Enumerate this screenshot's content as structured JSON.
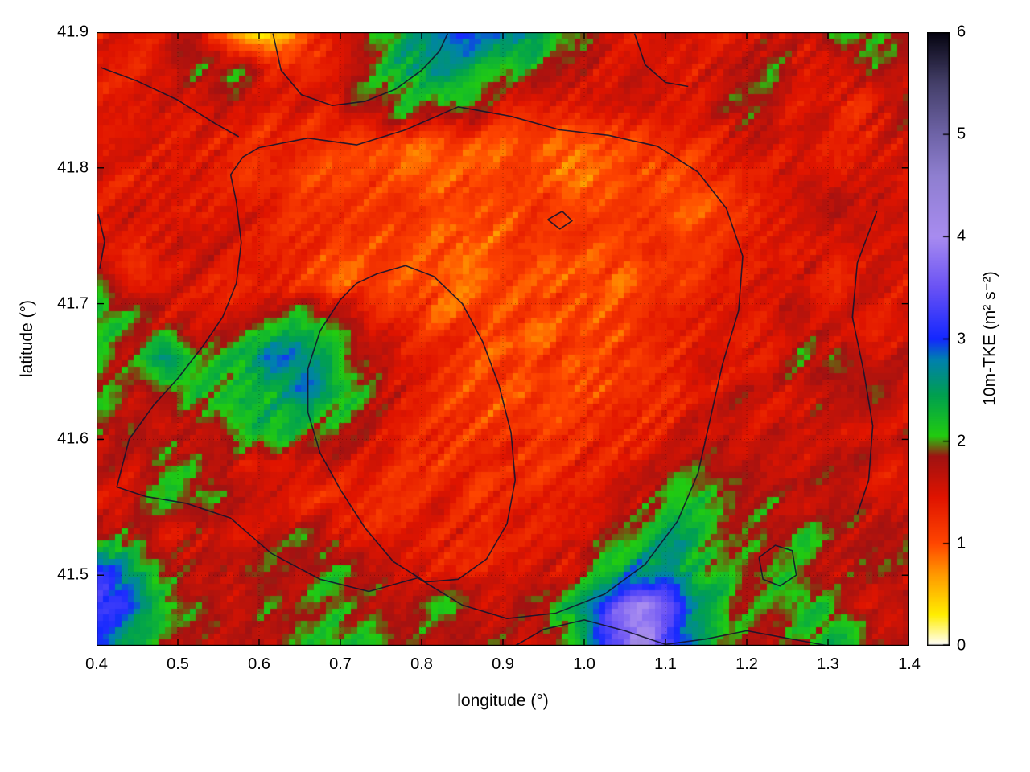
{
  "figure": {
    "background": "#ffffff",
    "plot_border_color": "#000000"
  },
  "chart_data": {
    "type": "heatmap",
    "title": "",
    "xlabel": "longitude (°)",
    "ylabel": "latitude (°)",
    "colorbar_label": "10m-TKE (m² s⁻²)",
    "xlim": [
      0.4,
      1.4
    ],
    "ylim": [
      41.448,
      41.9
    ],
    "clim": [
      0,
      6
    ],
    "grid_on": true,
    "legend_position": "colorbar-right",
    "x_ticks": {
      "values": [
        0.4,
        0.5,
        0.6,
        0.7,
        0.8,
        0.9,
        1.0,
        1.1,
        1.2,
        1.3,
        1.4
      ],
      "labels": [
        "0.4",
        "0.5",
        "0.6",
        "0.7",
        "0.8",
        "0.9",
        "1.0",
        "1.1",
        "1.2",
        "1.3",
        "1.4"
      ]
    },
    "y_ticks": {
      "values": [
        41.5,
        41.6,
        41.7,
        41.8,
        41.9
      ],
      "labels": [
        "41.5",
        "41.6",
        "41.7",
        "41.8",
        "41.9"
      ]
    },
    "colorbar_ticks": {
      "values": [
        0,
        1,
        2,
        3,
        4,
        5,
        6
      ],
      "labels": [
        "0",
        "1",
        "2",
        "3",
        "4",
        "5",
        "6"
      ]
    },
    "colormap": [
      [
        0.0,
        "#ffffff"
      ],
      [
        0.3,
        "#ffee00"
      ],
      [
        0.7,
        "#ff9800"
      ],
      [
        1.0,
        "#ff4600"
      ],
      [
        1.45,
        "#e01400"
      ],
      [
        1.85,
        "#a01212"
      ],
      [
        2.05,
        "#22cc10"
      ],
      [
        2.45,
        "#00a050"
      ],
      [
        2.8,
        "#0080b0"
      ],
      [
        3.0,
        "#1428ff"
      ],
      [
        3.5,
        "#6a52f5"
      ],
      [
        4.0,
        "#a88cf0"
      ],
      [
        4.6,
        "#8f7fd0"
      ],
      [
        5.0,
        "#6f64a8"
      ],
      [
        5.5,
        "#45406a"
      ],
      [
        6.0,
        "#060410"
      ]
    ],
    "grid": {
      "cols": 25,
      "rows": 18,
      "lon_start": 0.42,
      "lon_step": 0.04,
      "lat_start_top": 41.8875,
      "lat_step": -0.025,
      "values": [
        [
          1.5,
          1.4,
          1.6,
          1.5,
          0.8,
          0.3,
          1.0,
          1.5,
          1.9,
          2.3,
          2.9,
          3.0,
          2.6,
          2.5,
          2.0,
          1.5,
          1.4,
          1.6,
          1.5,
          1.4,
          1.6,
          1.5,
          1.9,
          2.1,
          1.8
        ],
        [
          1.4,
          1.5,
          1.4,
          1.9,
          2.0,
          1.4,
          1.3,
          1.5,
          1.7,
          2.4,
          2.6,
          2.3,
          2.0,
          2.1,
          1.7,
          1.5,
          1.6,
          1.4,
          1.5,
          1.7,
          2.0,
          1.5,
          1.4,
          1.7,
          1.6
        ],
        [
          1.5,
          1.4,
          1.5,
          1.6,
          1.5,
          1.4,
          1.5,
          1.4,
          1.9,
          2.1,
          1.7,
          2.0,
          1.5,
          1.5,
          1.4,
          1.6,
          1.5,
          1.4,
          1.5,
          1.9,
          1.8,
          1.5,
          1.4,
          1.5,
          1.7
        ],
        [
          1.4,
          1.5,
          1.5,
          1.4,
          1.3,
          1.2,
          1.1,
          1.2,
          1.1,
          1.0,
          1.1,
          1.0,
          1.0,
          1.1,
          1.0,
          1.1,
          1.1,
          1.2,
          1.3,
          1.4,
          1.5,
          1.4,
          1.5,
          1.4,
          1.6
        ],
        [
          1.5,
          1.4,
          1.6,
          1.5,
          1.4,
          1.2,
          1.1,
          1.0,
          1.1,
          1.0,
          0.9,
          1.0,
          1.0,
          1.0,
          0.9,
          1.0,
          1.1,
          1.0,
          1.2,
          1.4,
          1.5,
          1.6,
          1.4,
          1.5,
          1.4
        ],
        [
          1.4,
          1.6,
          1.5,
          1.4,
          1.5,
          1.3,
          1.2,
          1.1,
          1.0,
          1.1,
          1.0,
          1.0,
          1.0,
          1.1,
          1.0,
          1.1,
          1.1,
          1.1,
          1.0,
          1.2,
          1.5,
          1.4,
          1.6,
          1.5,
          1.7
        ],
        [
          1.5,
          1.4,
          1.5,
          1.6,
          1.4,
          1.3,
          1.2,
          1.1,
          1.1,
          1.0,
          1.1,
          1.0,
          1.0,
          1.0,
          1.1,
          1.1,
          1.1,
          1.0,
          1.1,
          1.3,
          1.5,
          1.6,
          1.4,
          1.5,
          1.6
        ],
        [
          2.0,
          1.6,
          1.4,
          1.5,
          1.4,
          1.3,
          1.2,
          1.1,
          1.0,
          1.1,
          1.0,
          0.9,
          1.0,
          1.1,
          1.0,
          1.1,
          1.0,
          1.1,
          1.2,
          1.4,
          1.6,
          1.5,
          1.4,
          1.6,
          1.5
        ],
        [
          2.2,
          2.0,
          1.6,
          1.5,
          1.8,
          2.0,
          2.2,
          1.9,
          1.5,
          1.2,
          1.1,
          1.0,
          1.0,
          1.0,
          1.1,
          1.0,
          1.1,
          1.2,
          1.3,
          1.5,
          1.4,
          1.6,
          1.5,
          1.4,
          1.5
        ],
        [
          2.0,
          1.8,
          2.6,
          1.9,
          2.2,
          2.9,
          2.8,
          2.2,
          1.9,
          1.4,
          1.2,
          1.1,
          1.0,
          1.1,
          1.0,
          1.1,
          1.0,
          1.2,
          1.4,
          1.5,
          1.6,
          1.9,
          1.8,
          1.5,
          1.6
        ],
        [
          1.9,
          1.6,
          1.8,
          2.1,
          2.3,
          2.2,
          2.8,
          2.5,
          2.0,
          1.5,
          1.2,
          1.1,
          1.0,
          1.1,
          1.1,
          1.0,
          1.1,
          1.2,
          1.4,
          1.6,
          1.5,
          1.7,
          1.6,
          1.8,
          1.5
        ],
        [
          1.8,
          1.9,
          1.5,
          1.7,
          2.2,
          2.4,
          2.1,
          1.9,
          1.6,
          1.3,
          1.2,
          1.1,
          1.1,
          1.2,
          1.1,
          1.2,
          1.3,
          1.4,
          1.5,
          1.6,
          1.7,
          1.5,
          1.6,
          1.5,
          1.7
        ],
        [
          1.6,
          1.5,
          2.0,
          1.9,
          1.6,
          1.5,
          1.4,
          1.5,
          1.4,
          1.3,
          1.2,
          1.2,
          1.3,
          1.2,
          1.3,
          1.4,
          1.5,
          1.6,
          1.8,
          1.9,
          1.6,
          1.5,
          1.7,
          1.6,
          1.5
        ],
        [
          1.5,
          1.7,
          2.1,
          2.0,
          1.8,
          1.5,
          1.4,
          1.3,
          1.4,
          1.3,
          1.4,
          1.3,
          1.4,
          1.3,
          1.4,
          1.5,
          1.6,
          2.0,
          2.1,
          1.9,
          1.8,
          1.6,
          1.9,
          1.6,
          1.5
        ],
        [
          2.0,
          1.8,
          1.5,
          1.6,
          1.5,
          1.7,
          1.9,
          1.6,
          1.5,
          1.4,
          1.3,
          1.4,
          1.3,
          1.4,
          1.5,
          1.7,
          2.0,
          2.4,
          2.2,
          2.0,
          1.9,
          2.1,
          1.7,
          1.6,
          1.8
        ],
        [
          3.0,
          2.6,
          2.0,
          1.6,
          1.8,
          2.0,
          1.9,
          2.1,
          1.8,
          1.5,
          1.4,
          1.3,
          1.4,
          1.5,
          1.6,
          2.2,
          2.8,
          2.6,
          2.2,
          1.9,
          2.2,
          1.8,
          1.6,
          1.9,
          1.6
        ],
        [
          3.2,
          2.9,
          2.2,
          1.8,
          1.6,
          1.9,
          1.7,
          2.0,
          1.8,
          1.7,
          2.0,
          1.8,
          1.6,
          1.8,
          2.4,
          3.2,
          4.0,
          3.3,
          2.4,
          2.0,
          1.8,
          2.2,
          1.9,
          1.6,
          1.8
        ],
        [
          2.8,
          2.4,
          1.9,
          1.6,
          1.8,
          1.6,
          1.9,
          2.2,
          2.0,
          1.8,
          1.6,
          1.9,
          1.7,
          1.6,
          2.0,
          3.0,
          4.2,
          3.2,
          2.2,
          1.8,
          1.6,
          2.0,
          2.2,
          1.9,
          1.6
        ]
      ]
    },
    "contour_color": "#14142e",
    "contours": [
      [
        [
          0.6,
          41.815
        ],
        [
          0.66,
          41.822
        ],
        [
          0.72,
          41.817
        ],
        [
          0.78,
          41.828
        ],
        [
          0.845,
          41.845
        ],
        [
          0.91,
          41.838
        ],
        [
          0.97,
          41.828
        ],
        [
          1.03,
          41.824
        ],
        [
          1.09,
          41.816
        ],
        [
          1.14,
          41.797
        ],
        [
          1.175,
          41.77
        ],
        [
          1.195,
          41.735
        ],
        [
          1.19,
          41.695
        ],
        [
          1.17,
          41.655
        ],
        [
          1.155,
          41.615
        ],
        [
          1.14,
          41.575
        ],
        [
          1.115,
          41.54
        ],
        [
          1.075,
          41.508
        ],
        [
          1.025,
          41.486
        ],
        [
          0.965,
          41.472
        ],
        [
          0.905,
          41.468
        ],
        [
          0.85,
          41.478
        ],
        [
          0.795,
          41.498
        ],
        [
          0.735,
          41.488
        ],
        [
          0.675,
          41.497
        ],
        [
          0.615,
          41.516
        ],
        [
          0.565,
          41.542
        ],
        [
          0.51,
          41.553
        ],
        [
          0.46,
          41.558
        ],
        [
          0.425,
          41.565
        ],
        [
          0.44,
          41.6
        ],
        [
          0.47,
          41.625
        ],
        [
          0.5,
          41.645
        ],
        [
          0.53,
          41.668
        ],
        [
          0.555,
          41.69
        ],
        [
          0.572,
          41.715
        ],
        [
          0.578,
          41.745
        ],
        [
          0.572,
          41.775
        ],
        [
          0.565,
          41.795
        ],
        [
          0.58,
          41.808
        ],
        [
          0.6,
          41.815
        ]
      ],
      [
        [
          0.745,
          41.722
        ],
        [
          0.78,
          41.728
        ],
        [
          0.815,
          41.72
        ],
        [
          0.85,
          41.7
        ],
        [
          0.875,
          41.672
        ],
        [
          0.895,
          41.64
        ],
        [
          0.91,
          41.605
        ],
        [
          0.915,
          41.57
        ],
        [
          0.905,
          41.538
        ],
        [
          0.88,
          41.512
        ],
        [
          0.845,
          41.497
        ],
        [
          0.805,
          41.495
        ],
        [
          0.765,
          41.51
        ],
        [
          0.73,
          41.535
        ],
        [
          0.7,
          41.563
        ],
        [
          0.675,
          41.59
        ],
        [
          0.66,
          41.62
        ],
        [
          0.66,
          41.652
        ],
        [
          0.675,
          41.68
        ],
        [
          0.7,
          41.703
        ],
        [
          0.72,
          41.715
        ],
        [
          0.745,
          41.722
        ]
      ],
      [
        [
          0.405,
          41.874
        ],
        [
          0.45,
          41.864
        ],
        [
          0.5,
          41.85
        ],
        [
          0.545,
          41.833
        ],
        [
          0.575,
          41.823
        ]
      ],
      [
        [
          0.617,
          41.899
        ],
        [
          0.627,
          41.872
        ],
        [
          0.652,
          41.854
        ],
        [
          0.69,
          41.846
        ],
        [
          0.73,
          41.849
        ],
        [
          0.768,
          41.858
        ],
        [
          0.8,
          41.872
        ],
        [
          0.822,
          41.886
        ],
        [
          0.832,
          41.899
        ]
      ],
      [
        [
          1.062,
          41.899
        ],
        [
          1.075,
          41.876
        ],
        [
          1.1,
          41.863
        ],
        [
          1.128,
          41.86
        ]
      ],
      [
        [
          1.36,
          41.768
        ],
        [
          1.336,
          41.73
        ],
        [
          1.33,
          41.69
        ],
        [
          1.344,
          41.65
        ],
        [
          1.355,
          41.61
        ],
        [
          1.35,
          41.57
        ],
        [
          1.336,
          41.545
        ]
      ],
      [
        [
          1.215,
          41.513
        ],
        [
          1.235,
          41.522
        ],
        [
          1.256,
          41.518
        ],
        [
          1.261,
          41.5
        ],
        [
          1.241,
          41.492
        ],
        [
          1.22,
          41.497
        ],
        [
          1.215,
          41.513
        ]
      ],
      [
        [
          0.915,
          41.448
        ],
        [
          0.95,
          41.46
        ],
        [
          1.0,
          41.467
        ],
        [
          1.05,
          41.459
        ],
        [
          1.1,
          41.449
        ],
        [
          1.15,
          41.453
        ],
        [
          1.2,
          41.459
        ],
        [
          1.255,
          41.453
        ],
        [
          1.3,
          41.448
        ]
      ],
      [
        [
          0.955,
          41.762
        ],
        [
          0.973,
          41.768
        ],
        [
          0.985,
          41.761
        ],
        [
          0.97,
          41.755
        ],
        [
          0.955,
          41.762
        ]
      ],
      [
        [
          0.402,
          41.766
        ],
        [
          0.41,
          41.746
        ],
        [
          0.404,
          41.726
        ]
      ]
    ]
  }
}
